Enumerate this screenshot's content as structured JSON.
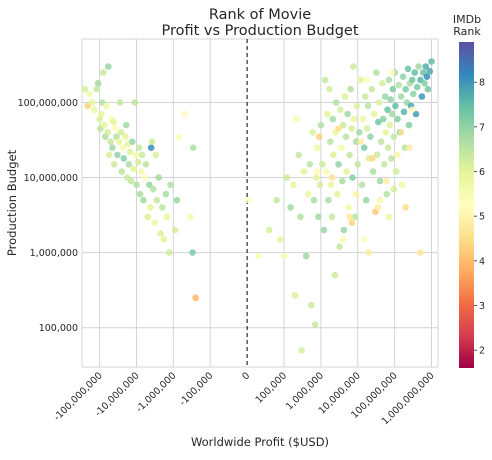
{
  "chart_data": {
    "type": "scatter",
    "title": [
      "Rank of Movie",
      "Profit vs Production Budget"
    ],
    "xlabel": "Worldwide Profit ($USD)",
    "ylabel": "Production Budget",
    "x_scale": "symlog",
    "y_scale": "log",
    "xlim": [
      -300000000,
      1500000000
    ],
    "ylim": [
      30000,
      700000000
    ],
    "x_ticks": [
      {
        "value": -100000000,
        "label": "-100,000,000"
      },
      {
        "value": -10000000,
        "label": "-10,000,000"
      },
      {
        "value": -1000000,
        "label": "-1,000,000"
      },
      {
        "value": -100000,
        "label": "-100,000"
      },
      {
        "value": 0,
        "label": "0"
      },
      {
        "value": 100000,
        "label": "100,000"
      },
      {
        "value": 1000000,
        "label": "1,000,000"
      },
      {
        "value": 10000000,
        "label": "10,000,000"
      },
      {
        "value": 100000000,
        "label": "100,000,000"
      },
      {
        "value": 1000000000,
        "label": "1,000,000,000"
      }
    ],
    "y_ticks": [
      {
        "value": 100000,
        "label": "100,000"
      },
      {
        "value": 1000000,
        "label": "1,000,000"
      },
      {
        "value": 10000000,
        "label": "10,000,000"
      },
      {
        "value": 100000000,
        "label": "100,000,000"
      }
    ],
    "zero_line": true,
    "grid": true,
    "colorbar": {
      "title": [
        "IMDb",
        "Rank"
      ],
      "colormap": "Spectral",
      "range": [
        1.6,
        8.9
      ],
      "ticks": [
        2,
        3,
        4,
        5,
        6,
        7,
        8
      ],
      "stops": [
        "#9e0142",
        "#d53e4f",
        "#f46d43",
        "#fdae61",
        "#fee08b",
        "#ffffbf",
        "#e6f598",
        "#abdda4",
        "#66c2a5",
        "#3288bd",
        "#5e4fa2"
      ]
    },
    "points": [
      [
        -250000000,
        150000000,
        6.2
      ],
      [
        -210000000,
        90000000,
        4.3
      ],
      [
        -190000000,
        130000000,
        5.6
      ],
      [
        -160000000,
        100000000,
        6.0
      ],
      [
        -140000000,
        80000000,
        5.8
      ],
      [
        -120000000,
        150000000,
        6.4
      ],
      [
        -110000000,
        180000000,
        6.8
      ],
      [
        -100000000,
        60000000,
        6.1
      ],
      [
        -95000000,
        45000000,
        6.5
      ],
      [
        -90000000,
        70000000,
        5.9
      ],
      [
        -85000000,
        100000000,
        6.6
      ],
      [
        -80000000,
        250000000,
        6.3
      ],
      [
        -75000000,
        50000000,
        6.0
      ],
      [
        -70000000,
        35000000,
        6.7
      ],
      [
        -65000000,
        90000000,
        5.7
      ],
      [
        -60000000,
        40000000,
        6.2
      ],
      [
        -58000000,
        300000000,
        6.9
      ],
      [
        -55000000,
        20000000,
        6.1
      ],
      [
        -50000000,
        30000000,
        6.4
      ],
      [
        -48000000,
        60000000,
        5.4
      ],
      [
        -45000000,
        25000000,
        6.8
      ],
      [
        -42000000,
        55000000,
        6.0
      ],
      [
        -40000000,
        15000000,
        6.3
      ],
      [
        -38000000,
        45000000,
        5.2
      ],
      [
        -35000000,
        35000000,
        6.6
      ],
      [
        -33000000,
        20000000,
        7.0
      ],
      [
        -30000000,
        30000000,
        5.9
      ],
      [
        -28000000,
        100000000,
        6.4
      ],
      [
        -26000000,
        40000000,
        6.2
      ],
      [
        -25000000,
        12000000,
        6.5
      ],
      [
        -23000000,
        25000000,
        5.5
      ],
      [
        -22000000,
        18000000,
        7.1
      ],
      [
        -20000000,
        35000000,
        6.0
      ],
      [
        -19000000,
        50000000,
        6.8
      ],
      [
        -18000000,
        10000000,
        6.3
      ],
      [
        -17000000,
        28000000,
        5.8
      ],
      [
        -16000000,
        15000000,
        6.7
      ],
      [
        -15000000,
        22000000,
        6.1
      ],
      [
        -14000000,
        9000000,
        6.4
      ],
      [
        -13000000,
        30000000,
        6.9
      ],
      [
        -12000000,
        13000000,
        6.0
      ],
      [
        -11000000,
        100000000,
        6.5
      ],
      [
        -10500000,
        20000000,
        5.6
      ],
      [
        -10000000,
        8000000,
        6.6
      ],
      [
        -9000000,
        16000000,
        6.2
      ],
      [
        -8500000,
        25000000,
        6.4
      ],
      [
        -8000000,
        6000000,
        6.7
      ],
      [
        -7500000,
        12000000,
        5.7
      ],
      [
        -7000000,
        20000000,
        6.3
      ],
      [
        -6500000,
        5000000,
        6.8
      ],
      [
        -6000000,
        10000000,
        5.3
      ],
      [
        -5500000,
        15000000,
        6.5
      ],
      [
        -5000000,
        3000000,
        6.1
      ],
      [
        -4500000,
        8000000,
        6.9
      ],
      [
        -4200000,
        4000000,
        6.0
      ],
      [
        -4000000,
        25000000,
        8.1
      ],
      [
        -3800000,
        30000000,
        6.3
      ],
      [
        -3500000,
        7000000,
        6.6
      ],
      [
        -3200000,
        2500000,
        5.8
      ],
      [
        -3000000,
        20000000,
        6.2
      ],
      [
        -2800000,
        5000000,
        6.4
      ],
      [
        -2500000,
        10000000,
        6.8
      ],
      [
        -2200000,
        1800000,
        6.1
      ],
      [
        -2000000,
        4000000,
        6.5
      ],
      [
        -1800000,
        1500000,
        6.0
      ],
      [
        -1600000,
        6000000,
        6.7
      ],
      [
        -1500000,
        3000000,
        5.9
      ],
      [
        -1300000,
        1000000,
        6.3
      ],
      [
        -1200000,
        8000000,
        6.6
      ],
      [
        -900000,
        2000000,
        6.2
      ],
      [
        -800000,
        5000000,
        6.9
      ],
      [
        -700000,
        35000000,
        5.4
      ],
      [
        -500000,
        70000000,
        5.2
      ],
      [
        -350000,
        3000000,
        5.6
      ],
      [
        -300000,
        1000000,
        7.2
      ],
      [
        -290000,
        25000000,
        6.7
      ],
      [
        -250000,
        250000,
        3.9
      ],
      [
        5000,
        5000000,
        5.3
      ],
      [
        30000,
        900000,
        5.4
      ],
      [
        60000,
        2000000,
        6.2
      ],
      [
        80000,
        5000000,
        6.4
      ],
      [
        90000,
        1500000,
        6.0
      ],
      [
        100000,
        900000,
        5.5
      ],
      [
        120000,
        10000000,
        6.3
      ],
      [
        150000,
        4000000,
        6.8
      ],
      [
        180000,
        8000000,
        5.9
      ],
      [
        200000,
        270000,
        6.1
      ],
      [
        220000,
        60000000,
        5.5
      ],
      [
        250000,
        20000000,
        6.4
      ],
      [
        280000,
        3000000,
        6.6
      ],
      [
        300000,
        50000,
        6.2
      ],
      [
        350000,
        12000000,
        6.0
      ],
      [
        400000,
        900000,
        6.9
      ],
      [
        450000,
        6000000,
        5.8
      ],
      [
        500000,
        15000000,
        6.5
      ],
      [
        550000,
        200000,
        6.3
      ],
      [
        600000,
        40000000,
        6.1
      ],
      [
        650000,
        5000000,
        6.7
      ],
      [
        700000,
        110000,
        6.4
      ],
      [
        750000,
        10000000,
        6.0
      ],
      [
        800000,
        25000000,
        5.7
      ],
      [
        850000,
        3000000,
        6.8
      ],
      [
        900000,
        35000000,
        4.3
      ],
      [
        950000,
        8000000,
        6.2
      ],
      [
        1000000,
        50000000,
        6.6
      ],
      [
        1100000,
        15000000,
        6.3
      ],
      [
        1200000,
        2000000,
        6.9
      ],
      [
        1300000,
        200000000,
        6.4
      ],
      [
        1400000,
        12000000,
        5.5
      ],
      [
        1500000,
        70000000,
        6.0
      ],
      [
        1600000,
        5000000,
        6.7
      ],
      [
        1700000,
        150000000,
        6.2
      ],
      [
        1800000,
        30000000,
        6.5
      ],
      [
        1900000,
        8000000,
        5.9
      ],
      [
        2000000,
        3000000,
        6.4
      ],
      [
        2100000,
        60000000,
        6.8
      ],
      [
        2200000,
        20000000,
        6.1
      ],
      [
        2400000,
        500000,
        6.3
      ],
      [
        2500000,
        40000000,
        5.8
      ],
      [
        2600000,
        100000000,
        6.6
      ],
      [
        2800000,
        6000000,
        6.0
      ],
      [
        3000000,
        15000000,
        7.0
      ],
      [
        3200000,
        1200000,
        6.4
      ],
      [
        3400000,
        80000000,
        6.2
      ],
      [
        3600000,
        25000000,
        5.6
      ],
      [
        3800000,
        9000000,
        6.7
      ],
      [
        4000000,
        50000000,
        6.3
      ],
      [
        4200000,
        2000000,
        6.9
      ],
      [
        4500000,
        120000000,
        6.1
      ],
      [
        4800000,
        35000000,
        6.5
      ],
      [
        5000000,
        12000000,
        6.0
      ],
      [
        5300000,
        70000000,
        6.8
      ],
      [
        5600000,
        4000000,
        5.7
      ],
      [
        6000000,
        20000000,
        6.4
      ],
      [
        6400000,
        150000000,
        6.6
      ],
      [
        6800000,
        45000000,
        6.2
      ],
      [
        7200000,
        10000000,
        7.1
      ],
      [
        7600000,
        300000000,
        6.3
      ],
      [
        8000000,
        60000000,
        5.9
      ],
      [
        8500000,
        3000000,
        6.5
      ],
      [
        9000000,
        30000000,
        6.7
      ],
      [
        9500000,
        90000000,
        6.1
      ],
      [
        10000000,
        15000000,
        6.4
      ],
      [
        11000000,
        40000000,
        6.8
      ],
      [
        12000000,
        200000000,
        6.0
      ],
      [
        13000000,
        8000000,
        6.6
      ],
      [
        14000000,
        60000000,
        5.8
      ],
      [
        15000000,
        25000000,
        7.2
      ],
      [
        16000000,
        120000000,
        6.3
      ],
      [
        17000000,
        5000000,
        6.9
      ],
      [
        18000000,
        45000000,
        6.2
      ],
      [
        19000000,
        90000000,
        6.5
      ],
      [
        20000000,
        18000000,
        6.1
      ],
      [
        22000000,
        35000000,
        7.0
      ],
      [
        24000000,
        150000000,
        6.4
      ],
      [
        26000000,
        12000000,
        6.7
      ],
      [
        28000000,
        70000000,
        6.0
      ],
      [
        30000000,
        3500000,
        4.2
      ],
      [
        32000000,
        250000000,
        6.6
      ],
      [
        34000000,
        20000000,
        6.3
      ],
      [
        36000000,
        55000000,
        7.3
      ],
      [
        38000000,
        100000000,
        6.1
      ],
      [
        40000000,
        9000000,
        6.8
      ],
      [
        43000000,
        30000000,
        6.5
      ],
      [
        46000000,
        180000000,
        6.2
      ],
      [
        49000000,
        60000000,
        7.1
      ],
      [
        52000000,
        15000000,
        6.4
      ],
      [
        55000000,
        120000000,
        6.9
      ],
      [
        58000000,
        40000000,
        6.0
      ],
      [
        61000000,
        6000000,
        6.6
      ],
      [
        64000000,
        80000000,
        7.4
      ],
      [
        67000000,
        25000000,
        6.3
      ],
      [
        70000000,
        200000000,
        6.7
      ],
      [
        74000000,
        50000000,
        6.1
      ],
      [
        78000000,
        110000000,
        7.0
      ],
      [
        82000000,
        18000000,
        6.5
      ],
      [
        86000000,
        70000000,
        6.8
      ],
      [
        90000000,
        150000000,
        7.2
      ],
      [
        95000000,
        35000000,
        6.4
      ],
      [
        100000000,
        250000000,
        6.9
      ],
      [
        105000000,
        90000000,
        7.5
      ],
      [
        110000000,
        12000000,
        6.2
      ],
      [
        120000000,
        60000000,
        7.1
      ],
      [
        130000000,
        170000000,
        6.6
      ],
      [
        140000000,
        40000000,
        7.3
      ],
      [
        150000000,
        120000000,
        6.8
      ],
      [
        160000000,
        8000000,
        5.7
      ],
      [
        170000000,
        220000000,
        7.0
      ],
      [
        180000000,
        75000000,
        7.6
      ],
      [
        190000000,
        25000000,
        6.5
      ],
      [
        200000000,
        150000000,
        7.2
      ],
      [
        215000000,
        100000000,
        6.9
      ],
      [
        230000000,
        280000000,
        7.4
      ],
      [
        245000000,
        50000000,
        7.1
      ],
      [
        260000000,
        180000000,
        6.7
      ],
      [
        280000000,
        90000000,
        7.8
      ],
      [
        300000000,
        200000000,
        7.3
      ],
      [
        320000000,
        130000000,
        7.0
      ],
      [
        350000000,
        250000000,
        7.5
      ],
      [
        380000000,
        70000000,
        7.9
      ],
      [
        410000000,
        160000000,
        7.2
      ],
      [
        450000000,
        300000000,
        6.8
      ],
      [
        500000000,
        200000000,
        7.6
      ],
      [
        550000000,
        120000000,
        8.0
      ],
      [
        600000000,
        250000000,
        7.4
      ],
      [
        650000000,
        180000000,
        7.1
      ],
      [
        700000000,
        300000000,
        7.7
      ],
      [
        750000000,
        220000000,
        8.1
      ],
      [
        800000000,
        150000000,
        7.3
      ],
      [
        900000000,
        260000000,
        7.8
      ],
      [
        1000000000,
        350000000,
        7.5
      ],
      [
        3000000,
        45000000,
        4.5
      ],
      [
        12000000,
        30000000,
        4.8
      ],
      [
        25000000,
        18000000,
        4.4
      ],
      [
        60000000,
        9000000,
        4.9
      ],
      [
        150000000,
        40000000,
        4.6
      ],
      [
        6000000,
        3000000,
        4.7
      ],
      [
        40000000,
        5000000,
        5.0
      ],
      [
        250000000,
        25000000,
        4.8
      ],
      [
        85000000,
        250000000,
        5.2
      ],
      [
        2000000,
        10000000,
        4.6
      ],
      [
        800000,
        12000000,
        5.1
      ],
      [
        18000000,
        200000000,
        5.4
      ],
      [
        9000000,
        6000000,
        4.9
      ],
      [
        300000000,
        80000000,
        5.3
      ],
      [
        120000000,
        20000000,
        5.0
      ],
      [
        20000000,
        1000000,
        4.8
      ],
      [
        4000000,
        1500000,
        5.5
      ],
      [
        7000000,
        2500000,
        4.4
      ],
      [
        15000000,
        1500000,
        5.3
      ],
      [
        35000000,
        4000000,
        4.8
      ],
      [
        200000000,
        4000000,
        4.5
      ],
      [
        500000000,
        1000000,
        4.7
      ],
      [
        70000000,
        3000000,
        5.8
      ],
      [
        95000000,
        7000000,
        6.2
      ]
    ]
  }
}
